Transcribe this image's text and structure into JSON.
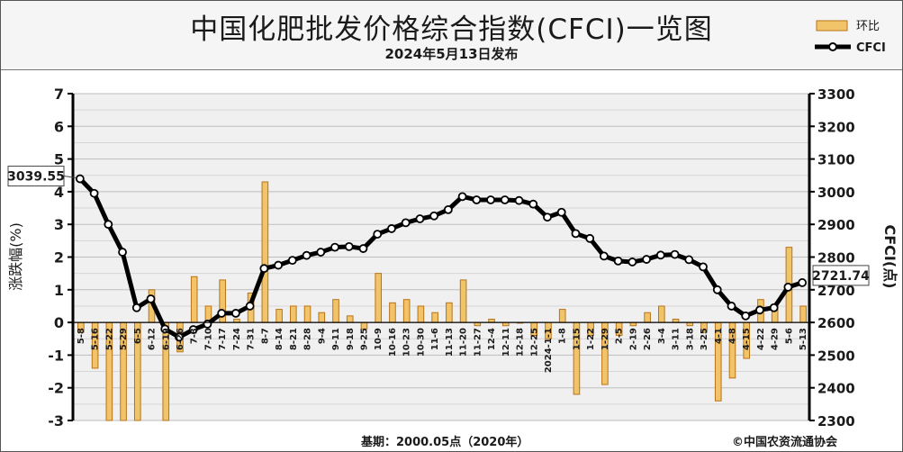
{
  "header": {
    "title": "中国化肥批发价格综合指数(CFCI)一览图",
    "subtitle": "2024年5月13日发布"
  },
  "legend": {
    "bar_label": "环比",
    "line_label": "CFCI"
  },
  "footer": {
    "base_text": "基期：2000.05点（2020年）",
    "copyright": "©中国农资流通协会"
  },
  "colors": {
    "bar_fill": "#f2c46a",
    "bar_stroke": "#b8731a",
    "line": "#000000",
    "plot_bg": "#f0f0f0",
    "grid": "#bdbdbd"
  },
  "chart_data": {
    "type": "bar+line",
    "categories": [
      "5-8",
      "5-16",
      "5-22",
      "5-29",
      "6-5",
      "6-12",
      "6-19",
      "6-26",
      "7-3",
      "7-10",
      "7-17",
      "7-24",
      "7-31",
      "8-7",
      "8-14",
      "8-21",
      "8-28",
      "9-4",
      "9-11",
      "9-18",
      "9-25",
      "10-9",
      "10-16",
      "10-23",
      "10-30",
      "11-6",
      "11-13",
      "11-20",
      "11-27",
      "12-4",
      "12-11",
      "12-18",
      "12-25",
      "2024-1-1",
      "1-8",
      "1-15",
      "1-22",
      "1-29",
      "2-5",
      "2-19",
      "2-26",
      "3-4",
      "3-11",
      "3-18",
      "3-25",
      "4-1",
      "4-8",
      "4-15",
      "4-22",
      "4-29",
      "5-6",
      "5-13"
    ],
    "y_left": {
      "label": "涨跌幅(%)",
      "min": -3,
      "max": 7,
      "ticks": [
        -3,
        -2,
        -1,
        0,
        1,
        2,
        3,
        4,
        5,
        6,
        7
      ]
    },
    "y_right": {
      "label": "CFCI(点)",
      "min": 2300,
      "max": 3300,
      "ticks": [
        2300,
        2400,
        2500,
        2600,
        2700,
        2800,
        2900,
        3000,
        3100,
        3200,
        3300
      ]
    },
    "grid": true,
    "series": [
      {
        "name": "环比",
        "type": "bar",
        "axis": "left",
        "values": [
          -0.3,
          -1.4,
          -3.0,
          -3.0,
          -3.0,
          1.0,
          -3.0,
          -0.9,
          1.4,
          0.5,
          1.3,
          0.1,
          0.9,
          4.3,
          0.4,
          0.5,
          0.5,
          0.3,
          0.7,
          0.2,
          -0.2,
          1.5,
          0.6,
          0.7,
          0.5,
          0.3,
          0.6,
          1.3,
          -0.1,
          0.1,
          -0.1,
          0.0,
          -0.4,
          -0.5,
          0.4,
          -2.2,
          -0.4,
          -1.9,
          -0.4,
          -0.1,
          0.3,
          0.5,
          0.1,
          -0.1,
          -0.3,
          -2.4,
          -1.7,
          -1.1,
          0.7,
          0.5,
          2.3,
          0.5
        ]
      },
      {
        "name": "CFCI",
        "type": "line",
        "axis": "right",
        "values": [
          3039.55,
          2995,
          2900,
          2815,
          2645,
          2672,
          2580,
          2555,
          2578,
          2595,
          2628,
          2628,
          2650,
          2765,
          2775,
          2790,
          2805,
          2815,
          2830,
          2832,
          2826,
          2870,
          2887,
          2905,
          2917,
          2926,
          2945,
          2985,
          2975,
          2975,
          2975,
          2973,
          2962,
          2922,
          2937,
          2872,
          2857,
          2803,
          2788,
          2785,
          2793,
          2806,
          2808,
          2792,
          2770,
          2700,
          2650,
          2620,
          2638,
          2645,
          2708,
          2721.74
        ]
      }
    ],
    "annotations": [
      {
        "label": "3039.55",
        "series": "CFCI",
        "point": "first"
      },
      {
        "label": "2721.74",
        "series": "CFCI",
        "point": "last"
      }
    ]
  }
}
